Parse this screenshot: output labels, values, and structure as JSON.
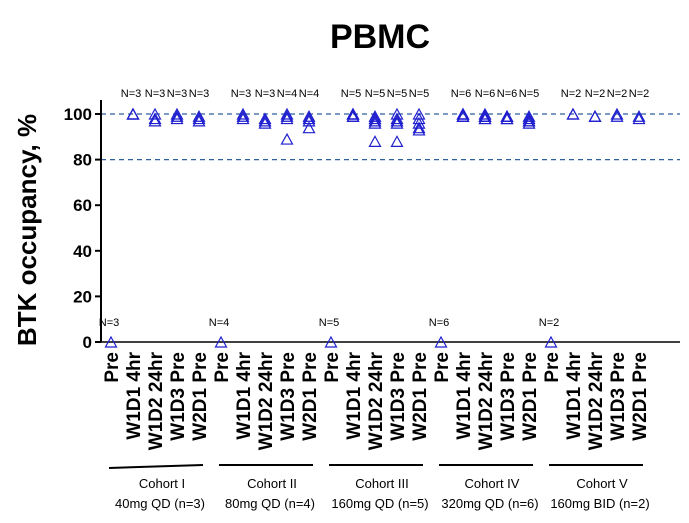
{
  "chart_data": {
    "type": "scatter",
    "title": "PBMC",
    "ylabel": "BTK occupancy, %",
    "xlabel": "",
    "ylim": [
      0,
      110
    ],
    "yticks": [
      0,
      20,
      40,
      60,
      80,
      100
    ],
    "reference_lines": [
      100,
      80
    ],
    "colors": {
      "marker": "#1f1fcf",
      "refline": "#2f5f9f",
      "axis": "#000000"
    },
    "marker": "open-triangle",
    "cohorts": [
      {
        "name": "Cohort I",
        "dose": "40mg QD (n=3)",
        "groups": [
          {
            "label": "Pre",
            "n_label": "N=3",
            "values": [
              0
            ]
          },
          {
            "label": "W1D1 4hr",
            "n_label": "N=3",
            "values": [
              100,
              100,
              100
            ]
          },
          {
            "label": "W1D2 24hr",
            "n_label": "N=3",
            "values": [
              100,
              98,
              97
            ]
          },
          {
            "label": "W1D3 Pre",
            "n_label": "N=3",
            "values": [
              100,
              99,
              98
            ]
          },
          {
            "label": "W2D1 Pre",
            "n_label": "N=3",
            "values": [
              99,
              97,
              98
            ]
          }
        ]
      },
      {
        "name": "Cohort II",
        "dose": "80mg QD (n=4)",
        "groups": [
          {
            "label": "Pre",
            "n_label": "N=4",
            "values": [
              0
            ]
          },
          {
            "label": "W1D1 4hr",
            "n_label": "N=3",
            "values": [
              100,
              99,
              98
            ]
          },
          {
            "label": "W1D2 24hr",
            "n_label": "N=3",
            "values": [
              98,
              96,
              97
            ]
          },
          {
            "label": "W1D3 Pre",
            "n_label": "N=4",
            "values": [
              100,
              99,
              98,
              89
            ]
          },
          {
            "label": "W2D1 Pre",
            "n_label": "N=4",
            "values": [
              99,
              98,
              97,
              94
            ]
          }
        ]
      },
      {
        "name": "Cohort III",
        "dose": "160mg QD (n=5)",
        "groups": [
          {
            "label": "Pre",
            "n_label": "N=5",
            "values": [
              0
            ]
          },
          {
            "label": "W1D1 4hr",
            "n_label": "N=5",
            "values": [
              100,
              100,
              99,
              100,
              99
            ]
          },
          {
            "label": "W1D2 24hr",
            "n_label": "N=5",
            "values": [
              99,
              98,
              97,
              96,
              88
            ]
          },
          {
            "label": "W1D3 Pre",
            "n_label": "N=5",
            "values": [
              100,
              98,
              97,
              96,
              88
            ]
          },
          {
            "label": "W2D1 Pre",
            "n_label": "N=5",
            "values": [
              100,
              98,
              96,
              94,
              93
            ]
          }
        ]
      },
      {
        "name": "Cohort IV",
        "dose": "320mg QD (n=6)",
        "groups": [
          {
            "label": "Pre",
            "n_label": "N=6",
            "values": [
              0
            ]
          },
          {
            "label": "W1D1 4hr",
            "n_label": "N=6",
            "values": [
              100,
              100,
              99,
              99,
              100,
              99
            ]
          },
          {
            "label": "W1D2 24hr",
            "n_label": "N=6",
            "values": [
              100,
              99,
              99,
              98,
              99,
              98
            ]
          },
          {
            "label": "W1D3 Pre",
            "n_label": "N=6",
            "values": [
              99,
              99,
              98,
              98,
              99,
              98
            ]
          },
          {
            "label": "W2D1 Pre",
            "n_label": "N=5",
            "values": [
              99,
              98,
              97,
              97,
              96
            ]
          }
        ]
      },
      {
        "name": "Cohort V",
        "dose": "160mg BID (n=2)",
        "groups": [
          {
            "label": "Pre",
            "n_label": "N=2",
            "values": [
              0
            ]
          },
          {
            "label": "W1D1 4hr",
            "n_label": "N=2",
            "values": [
              100,
              100
            ]
          },
          {
            "label": "W1D2 24hr",
            "n_label": "N=2",
            "values": [
              99,
              99
            ]
          },
          {
            "label": "W1D3 Pre",
            "n_label": "N=2",
            "values": [
              100,
              99
            ]
          },
          {
            "label": "W2D1 Pre",
            "n_label": "N=2",
            "values": [
              99,
              98
            ]
          }
        ]
      }
    ]
  }
}
